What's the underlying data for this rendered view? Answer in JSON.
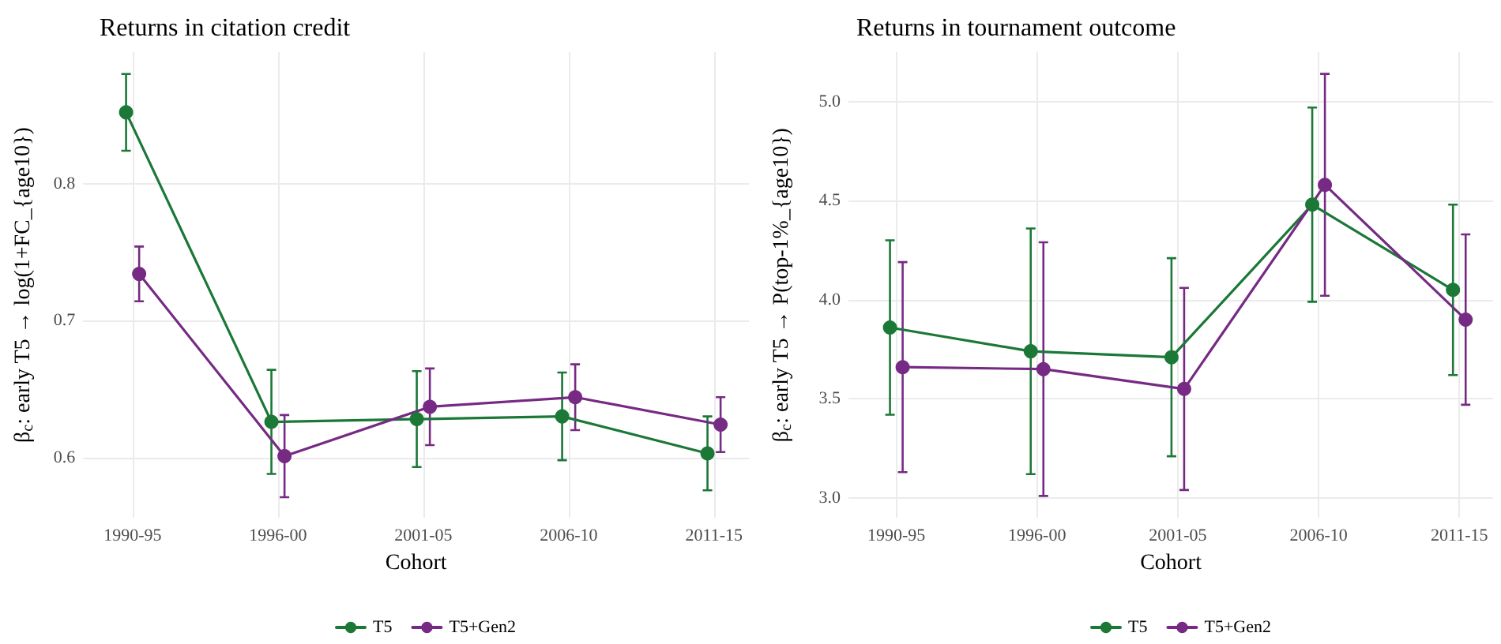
{
  "chart_data": [
    {
      "type": "line",
      "title": "Returns in citation credit",
      "xlabel": "Cohort",
      "ylabel": "β$_{c}$: early T5 → log(1+FC_{age10})",
      "categories": [
        "1990-95",
        "1996-00",
        "2001-05",
        "2006-10",
        "2011-15"
      ],
      "ylim": [
        0.556,
        0.896
      ],
      "yticks": [
        0.6,
        0.7,
        0.8
      ],
      "series": [
        {
          "name": "T5",
          "color": "#1b7837",
          "values": [
            0.852,
            0.626,
            0.628,
            0.63,
            0.603
          ],
          "errors": [
            0.028,
            0.038,
            0.035,
            0.032,
            0.027
          ]
        },
        {
          "name": "T5+Gen2",
          "color": "#762a83",
          "values": [
            0.734,
            0.601,
            0.637,
            0.644,
            0.624
          ],
          "errors": [
            0.02,
            0.03,
            0.028,
            0.024,
            0.02
          ]
        }
      ],
      "grid": true,
      "legend": "bottom",
      "marker": "circle",
      "line_style": "solid"
    },
    {
      "type": "line",
      "title": "Returns in tournament outcome",
      "xlabel": "Cohort",
      "ylabel": "β$_{c}$: early T5 → P(top-1%_{age10})",
      "categories": [
        "1990-95",
        "1996-00",
        "2001-05",
        "2006-10",
        "2011-15"
      ],
      "ylim": [
        2.9,
        5.25
      ],
      "yticks": [
        {
          "value": 3,
          "label": "3.0"
        },
        {
          "value": 3.5,
          "label": "3.5"
        },
        {
          "value": 4,
          "label": "4.0"
        },
        {
          "value": 4.5,
          "label": "4.5"
        },
        {
          "value": 5,
          "label": "5.0"
        }
      ],
      "series": [
        {
          "name": "T5",
          "color": "#1b7837",
          "values": [
            3.86,
            3.74,
            3.71,
            4.48,
            4.05
          ],
          "errors": [
            0.44,
            0.62,
            0.5,
            0.49,
            0.43
          ]
        },
        {
          "name": "T5+Gen2",
          "color": "#762a83",
          "values": [
            3.66,
            3.65,
            3.55,
            4.58,
            3.9
          ],
          "errors": [
            0.53,
            0.64,
            0.51,
            0.56,
            0.43
          ]
        }
      ],
      "grid": true,
      "legend": "bottom",
      "marker": "circle",
      "line_style": "solid"
    }
  ]
}
